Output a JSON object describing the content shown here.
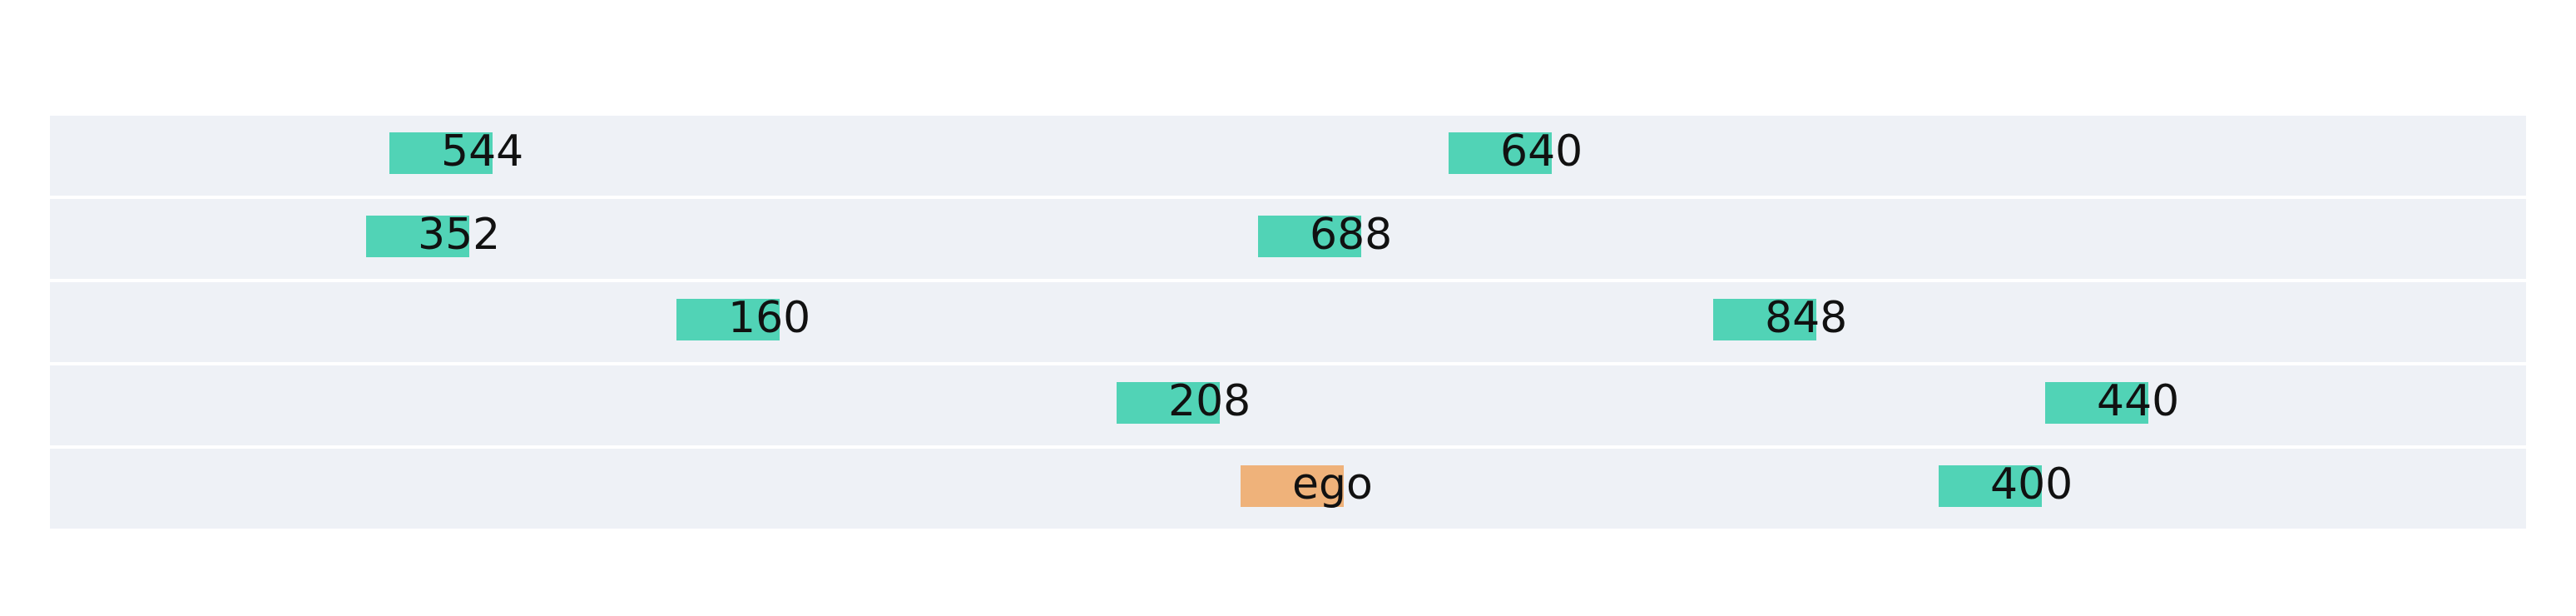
{
  "colors": {
    "background": "#ffffff",
    "lane": "#eef1f6",
    "ego_vehicle": "#efb27a",
    "other_vehicle": "#51d3b6",
    "label": "#111111"
  },
  "lanes": [
    {
      "vehicles": [
        {
          "label": "544",
          "kind": "other"
        },
        {
          "label": "640",
          "kind": "other"
        }
      ]
    },
    {
      "vehicles": [
        {
          "label": "352",
          "kind": "other"
        },
        {
          "label": "688",
          "kind": "other"
        }
      ]
    },
    {
      "vehicles": [
        {
          "label": "160",
          "kind": "other"
        },
        {
          "label": "848",
          "kind": "other"
        }
      ]
    },
    {
      "vehicles": [
        {
          "label": "208",
          "kind": "other"
        },
        {
          "label": "440",
          "kind": "other"
        }
      ]
    },
    {
      "vehicles": [
        {
          "label": "ego",
          "kind": "ego"
        },
        {
          "label": "400",
          "kind": "other"
        }
      ]
    }
  ]
}
